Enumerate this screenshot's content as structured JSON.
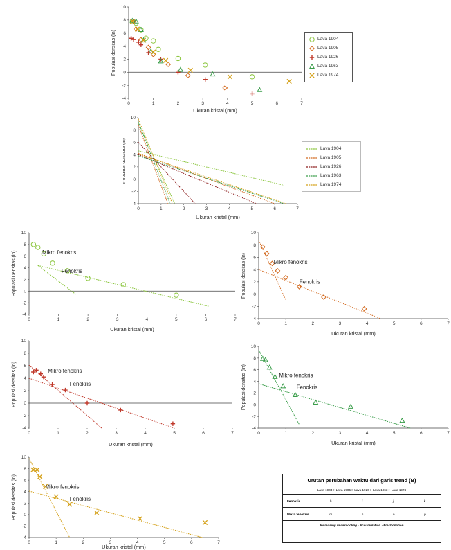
{
  "chart_data": [
    {
      "id": "top",
      "type": "scatter",
      "xlabel": "Ukuran kristal (mm)",
      "ylabel": "Populasi densitas (ln)",
      "xlim": [
        0,
        7
      ],
      "ylim": [
        -4,
        10
      ],
      "xticks": [
        0,
        1,
        2,
        3,
        4,
        5,
        6,
        7
      ],
      "yticks": [
        -4,
        -2,
        0,
        2,
        4,
        6,
        8,
        10
      ],
      "legend": "right",
      "series": [
        {
          "name": "Lava 1904",
          "marker": "circle",
          "color": "#8cc63f",
          "points": [
            [
              0.15,
              7.8
            ],
            [
              0.3,
              7.5
            ],
            [
              0.5,
              6.5
            ],
            [
              0.7,
              5.2
            ],
            [
              1.0,
              4.8
            ],
            [
              1.2,
              3.5
            ],
            [
              2.0,
              2.1
            ],
            [
              3.1,
              1.1
            ],
            [
              5.0,
              -0.7
            ]
          ]
        },
        {
          "name": "Lava 1905",
          "marker": "diamond",
          "color": "#d2691e",
          "points": [
            [
              0.2,
              7.8
            ],
            [
              0.3,
              6.6
            ],
            [
              0.5,
              5.0
            ],
            [
              0.8,
              3.8
            ],
            [
              1.0,
              2.7
            ],
            [
              1.6,
              1.2
            ],
            [
              2.4,
              -0.5
            ],
            [
              3.9,
              -2.4
            ]
          ]
        },
        {
          "name": "Lava 1926",
          "marker": "plus",
          "color": "#c0392b",
          "points": [
            [
              0.1,
              5.2
            ],
            [
              0.2,
              5.0
            ],
            [
              0.4,
              4.6
            ],
            [
              0.5,
              4.2
            ],
            [
              0.8,
              3.0
            ],
            [
              1.3,
              2.0
            ],
            [
              2.0,
              0.0
            ],
            [
              3.1,
              -1.1
            ],
            [
              5.0,
              -3.3
            ]
          ]
        },
        {
          "name": "Lava 1963",
          "marker": "triangle",
          "color": "#3a9d4a",
          "points": [
            [
              0.15,
              7.9
            ],
            [
              0.3,
              7.8
            ],
            [
              0.5,
              6.5
            ],
            [
              0.6,
              4.9
            ],
            [
              0.9,
              3.2
            ],
            [
              1.3,
              1.7
            ],
            [
              2.1,
              0.4
            ],
            [
              3.4,
              -0.3
            ],
            [
              5.3,
              -2.7
            ]
          ]
        },
        {
          "name": "Lava 1974",
          "marker": "x",
          "color": "#d4a017",
          "points": [
            [
              0.15,
              7.8
            ],
            [
              0.35,
              6.6
            ],
            [
              0.6,
              4.9
            ],
            [
              1.0,
              3.1
            ],
            [
              1.5,
              1.8
            ],
            [
              2.5,
              0.3
            ],
            [
              4.1,
              -0.7
            ],
            [
              6.5,
              -1.4
            ]
          ]
        }
      ]
    },
    {
      "id": "lines",
      "type": "line",
      "xlabel": "Ukuran kristal (mm)",
      "ylabel": "Populasi densitas (ln)",
      "xlim": [
        0,
        7
      ],
      "ylim": [
        -4,
        10
      ],
      "xticks": [
        0,
        1,
        2,
        3,
        4,
        5,
        6,
        7
      ],
      "yticks": [
        -4,
        -2,
        0,
        2,
        4,
        6,
        8,
        10
      ],
      "legend": "right",
      "series": [
        {
          "name": "Lava 1904",
          "color": "#8cc63f",
          "lines": [
            [
              [
                0,
                9.2
              ],
              [
                1.6,
                -4
              ]
            ],
            [
              [
                0,
                4.6
              ],
              [
                6.4,
                -1
              ]
            ]
          ]
        },
        {
          "name": "Lava 1905",
          "color": "#d2691e",
          "lines": [
            [
              [
                0,
                8.8
              ],
              [
                1.3,
                -4
              ]
            ],
            [
              [
                0,
                4.2
              ],
              [
                6.0,
                -4
              ]
            ]
          ]
        },
        {
          "name": "Lava 1926",
          "color": "#8b1a1a",
          "lines": [
            [
              [
                0,
                6.0
              ],
              [
                2.5,
                -4
              ]
            ],
            [
              [
                0,
                4.0
              ],
              [
                5.2,
                -4
              ]
            ]
          ]
        },
        {
          "name": "Lava 1963",
          "color": "#3a9d4a",
          "lines": [
            [
              [
                0,
                9.3
              ],
              [
                1.4,
                -4
              ]
            ],
            [
              [
                0,
                3.8
              ],
              [
                6.4,
                -4
              ]
            ]
          ]
        },
        {
          "name": "Lava 1974",
          "color": "#d4a017",
          "lines": [
            [
              [
                0,
                9.8
              ],
              [
                1.5,
                -4
              ]
            ],
            [
              [
                0,
                4.1
              ],
              [
                6.5,
                -4
              ]
            ]
          ]
        }
      ]
    },
    {
      "id": "p1904",
      "type": "scatter",
      "xlabel": "Ukuran kristal (mm)",
      "ylabel": "Populasi Densitas (ln)",
      "xlim": [
        0,
        7
      ],
      "ylim": [
        -4,
        10
      ],
      "xticks": [
        0,
        1,
        2,
        3,
        4,
        5,
        6,
        7
      ],
      "yticks": [
        -4,
        -2,
        0,
        2,
        4,
        6,
        8,
        10
      ],
      "marker": "circle",
      "color": "#8cc63f",
      "points": [
        [
          0.15,
          8.0
        ],
        [
          0.3,
          7.5
        ],
        [
          0.5,
          6.4
        ],
        [
          0.8,
          4.8
        ],
        [
          1.3,
          3.5
        ],
        [
          2.0,
          2.2
        ],
        [
          3.2,
          1.1
        ],
        [
          5.0,
          -0.7
        ]
      ],
      "lines": [
        [
          [
            0.3,
            4.4
          ],
          [
            1.6,
            -0.6
          ]
        ],
        [
          [
            0.3,
            4.4
          ],
          [
            6.1,
            -2.6
          ]
        ]
      ],
      "annotations": [
        {
          "text": "Mikro fenokris",
          "x": 0.45,
          "y": 6.3
        },
        {
          "text": "Fenokris",
          "x": 1.1,
          "y": 3.1
        }
      ]
    },
    {
      "id": "p1905",
      "type": "scatter",
      "xlabel": "Ukuran kristal (mm)",
      "ylabel": "Populasi densitas (ln)",
      "xlim": [
        0,
        7
      ],
      "ylim": [
        -4,
        10
      ],
      "xticks": [
        0,
        1,
        2,
        3,
        4,
        5,
        6,
        7
      ],
      "yticks": [
        -4,
        -2,
        0,
        2,
        4,
        6,
        8,
        10
      ],
      "marker": "diamond",
      "color": "#d2691e",
      "points": [
        [
          0.15,
          7.7
        ],
        [
          0.3,
          6.6
        ],
        [
          0.5,
          5.0
        ],
        [
          0.7,
          3.8
        ],
        [
          1.0,
          2.7
        ],
        [
          1.5,
          1.2
        ],
        [
          2.4,
          -0.5
        ],
        [
          3.9,
          -2.4
        ]
      ],
      "lines": [
        [
          [
            0,
            8.8
          ],
          [
            1.0,
            -1.0
          ]
        ],
        [
          [
            0,
            4.0
          ],
          [
            4.5,
            -4.0
          ]
        ]
      ],
      "annotations": [
        {
          "text": "Mikro fenokris",
          "x": 0.55,
          "y": 4.9
        },
        {
          "text": "Fenokris",
          "x": 1.5,
          "y": 1.7
        }
      ]
    },
    {
      "id": "p1926",
      "type": "scatter",
      "xlabel": "Ukuran kristal (mm)",
      "ylabel": "Populasi densitas (ln)",
      "xlim": [
        0,
        7
      ],
      "ylim": [
        -4,
        10
      ],
      "xticks": [
        0,
        1,
        2,
        3,
        4,
        5,
        6,
        7
      ],
      "yticks": [
        -4,
        -2,
        0,
        2,
        4,
        6,
        8,
        10
      ],
      "marker": "plus",
      "color": "#c0392b",
      "points": [
        [
          0.15,
          5.0
        ],
        [
          0.25,
          5.3
        ],
        [
          0.4,
          4.7
        ],
        [
          0.5,
          4.2
        ],
        [
          0.8,
          3.0
        ],
        [
          1.25,
          2.1
        ],
        [
          2.0,
          0.0
        ],
        [
          3.15,
          -1.1
        ],
        [
          4.95,
          -3.3
        ]
      ],
      "lines": [
        [
          [
            0,
            6.1
          ],
          [
            2.5,
            -4.0
          ]
        ],
        [
          [
            0,
            4.0
          ],
          [
            5.0,
            -4.0
          ]
        ]
      ],
      "annotations": [
        {
          "text": "Mikro fenokris",
          "x": 0.65,
          "y": 4.9
        },
        {
          "text": "Fenokris",
          "x": 1.4,
          "y": 2.8
        }
      ]
    },
    {
      "id": "p1963",
      "type": "scatter",
      "xlabel": "Ukuran kristal (mm)",
      "ylabel": "Populasi densitas (ln)",
      "xlim": [
        0,
        7
      ],
      "ylim": [
        -4,
        10
      ],
      "xticks": [
        0,
        1,
        2,
        3,
        4,
        5,
        6,
        7
      ],
      "yticks": [
        -4,
        -2,
        0,
        2,
        4,
        6,
        8,
        10
      ],
      "marker": "triangle",
      "color": "#3a9d4a",
      "points": [
        [
          0.15,
          7.9
        ],
        [
          0.25,
          7.7
        ],
        [
          0.4,
          6.4
        ],
        [
          0.6,
          4.8
        ],
        [
          0.9,
          3.2
        ],
        [
          1.35,
          1.7
        ],
        [
          2.1,
          0.4
        ],
        [
          3.4,
          -0.3
        ],
        [
          5.3,
          -2.7
        ]
      ],
      "lines": [
        [
          [
            0,
            9.4
          ],
          [
            1.5,
            -3.4
          ]
        ],
        [
          [
            0,
            3.6
          ],
          [
            5.6,
            -4.0
          ]
        ]
      ],
      "annotations": [
        {
          "text": "Mikro fenokris",
          "x": 0.75,
          "y": 4.7
        },
        {
          "text": "Fenokris",
          "x": 1.4,
          "y": 2.7
        }
      ]
    },
    {
      "id": "p1974",
      "type": "scatter",
      "xlabel": "Ukuran kristal (mm)",
      "ylabel": "Populasi densitas (ln)",
      "xlim": [
        0,
        7
      ],
      "ylim": [
        -4,
        10
      ],
      "xticks": [
        0,
        1,
        2,
        3,
        4,
        5,
        6,
        7
      ],
      "yticks": [
        -4,
        -2,
        0,
        2,
        4,
        6,
        8,
        10
      ],
      "marker": "x",
      "color": "#d4a017",
      "points": [
        [
          0.15,
          7.8
        ],
        [
          0.3,
          7.8
        ],
        [
          0.4,
          6.6
        ],
        [
          0.6,
          4.9
        ],
        [
          1.0,
          3.1
        ],
        [
          1.5,
          1.8
        ],
        [
          2.5,
          0.3
        ],
        [
          4.1,
          -0.7
        ],
        [
          6.5,
          -1.4
        ]
      ],
      "lines": [
        [
          [
            0,
            9.8
          ],
          [
            1.5,
            -4.0
          ]
        ],
        [
          [
            0,
            4.1
          ],
          [
            6.4,
            -4.0
          ]
        ]
      ],
      "annotations": [
        {
          "text": "Mikro fenokris",
          "x": 0.6,
          "y": 4.5
        },
        {
          "text": "Fenokris",
          "x": 1.5,
          "y": 2.4
        }
      ]
    }
  ],
  "summary": {
    "title": "Urutan perubahan waktu dari garis trend (B)",
    "order": "Lava 1904 > Lava 1905 > Lava 1926 > Lava 1963 > Lava 1974",
    "fenokris_label": "Fenokris",
    "fenokris_cells": [
      "h",
      "i",
      "j",
      "k"
    ],
    "mikro_label": "Mikro fenokris",
    "mikro_cells": [
      "m",
      "n",
      "o",
      "p"
    ],
    "footer": "Increasing undercooling · Accumulation · Fractionation"
  }
}
